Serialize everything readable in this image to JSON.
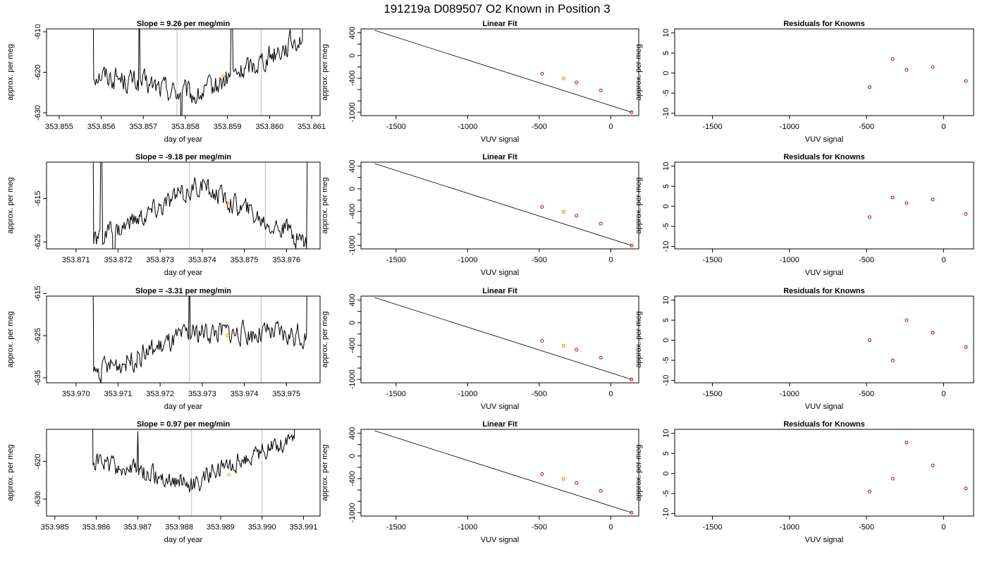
{
  "figure_title": "191219a     D089507   O2 Known in Position  3",
  "chart_data": [
    {
      "type": "line",
      "panel": "time-series",
      "title": "Slope =  9.26  per meg/min",
      "xlabel": "day of year",
      "ylabel": "approx. per meg",
      "xlim": [
        353.8547,
        353.8612
      ],
      "ylim": [
        -630.7,
        -609.3
      ],
      "xticks": [
        "353.855",
        "353.856",
        "353.857",
        "353.858",
        "353.859",
        "353.860",
        "353.861"
      ],
      "yticks": [
        -630,
        -620,
        -610
      ],
      "vlines": [
        353.8578,
        353.8598
      ],
      "highlight": {
        "x": 353.8589,
        "y": -621
      },
      "trace": {
        "x0": 353.8558,
        "x1": 353.8608,
        "level_start": -620,
        "level_mid": -626,
        "level_end": -611,
        "noise": 2.5,
        "spikes": [
          [
            353.8569,
            -600
          ],
          [
            353.8579,
            -640
          ],
          [
            353.8591,
            -602
          ]
        ]
      }
    },
    {
      "type": "line",
      "panel": "linear-fit",
      "title": "Linear Fit",
      "xlabel": "VUV signal",
      "ylabel": "approx. per meg",
      "xlim": [
        -1745,
        195
      ],
      "ylim": [
        -1060,
        470
      ],
      "xticks": [
        -1500,
        -1000,
        -500,
        0
      ],
      "yticks": [
        -1000,
        -400,
        0,
        400
      ],
      "line": {
        "x": [
          -1650,
          145
        ],
        "y": [
          445,
          -1000
        ]
      },
      "points": [
        [
          -480,
          -320
        ],
        [
          -330,
          -405
        ],
        [
          -240,
          -475
        ],
        [
          -70,
          -615
        ],
        [
          145,
          -1000
        ]
      ],
      "highlight": [
        -330,
        -405
      ]
    },
    {
      "type": "scatter",
      "panel": "residuals",
      "title": "Residuals for Knowns",
      "xlabel": "VUV signal",
      "ylabel": "approx. per meg",
      "xlim": [
        -1745,
        195
      ],
      "ylim": [
        -10.6,
        11
      ],
      "xticks": [
        -1500,
        -1000,
        -500,
        0
      ],
      "yticks": [
        -10,
        -5,
        0,
        5,
        10
      ],
      "points": [
        [
          -480,
          -3.5
        ],
        [
          -330,
          3.5
        ],
        [
          -240,
          0.8
        ],
        [
          -70,
          1.5
        ],
        [
          145,
          -2
        ]
      ]
    },
    {
      "type": "line",
      "panel": "time-series",
      "title": "Slope =  -9.18  per meg/min",
      "xlabel": "day of year",
      "ylabel": "approx. per meg",
      "xlim": [
        353.8703,
        353.8768
      ],
      "ylim": [
        -626.6,
        -606.6
      ],
      "xticks": [
        "353.871",
        "353.872",
        "353.873",
        "353.874",
        "353.875",
        "353.876"
      ],
      "yticks": [
        -625,
        -615
      ],
      "vlines": [
        353.8737,
        353.8755
      ],
      "highlight": {
        "x": 353.8746,
        "y": -616
      },
      "trace": {
        "x0": 353.8714,
        "x1": 353.8765,
        "level_start": -625,
        "level_mid": -612,
        "level_end": -625,
        "noise": 2.2,
        "spikes": [
          [
            353.8716,
            -600
          ],
          [
            353.8719,
            -640
          ],
          [
            353.8765,
            -600
          ]
        ]
      }
    },
    {
      "type": "line",
      "panel": "linear-fit",
      "title": "Linear Fit",
      "xlabel": "VUV signal",
      "ylabel": "approx. per meg",
      "xlim": [
        -1745,
        195
      ],
      "ylim": [
        -1060,
        470
      ],
      "xticks": [
        -1500,
        -1000,
        -500,
        0
      ],
      "yticks": [
        -1000,
        -400,
        0,
        400
      ],
      "line": {
        "x": [
          -1650,
          145
        ],
        "y": [
          445,
          -1000
        ]
      },
      "points": [
        [
          -480,
          -320
        ],
        [
          -330,
          -405
        ],
        [
          -240,
          -475
        ],
        [
          -70,
          -615
        ],
        [
          145,
          -1000
        ]
      ],
      "highlight": [
        -330,
        -405
      ]
    },
    {
      "type": "scatter",
      "panel": "residuals",
      "title": "Residuals for Knowns",
      "xlabel": "VUV signal",
      "ylabel": "approx. per meg",
      "xlim": [
        -1745,
        195
      ],
      "ylim": [
        -10.6,
        11
      ],
      "xticks": [
        -1500,
        -1000,
        -500,
        0
      ],
      "yticks": [
        -10,
        -5,
        0,
        5,
        10
      ],
      "points": [
        [
          -480,
          -2.7
        ],
        [
          -330,
          2.2
        ],
        [
          -240,
          0.8
        ],
        [
          -70,
          1.7
        ],
        [
          145,
          -1.9
        ]
      ]
    },
    {
      "type": "line",
      "panel": "time-series",
      "title": "Slope =  -3.31  per meg/min",
      "xlabel": "day of year",
      "ylabel": "approx. per meg",
      "xlim": [
        353.9693,
        353.9758
      ],
      "ylim": [
        -636.2,
        -615.6
      ],
      "xticks": [
        "353.970",
        "353.971",
        "353.972",
        "353.973",
        "353.974",
        "353.975"
      ],
      "yticks": [
        -635,
        -625,
        -615
      ],
      "vlines": [
        353.9727,
        353.9744
      ],
      "highlight": {
        "x": 353.9736,
        "y": -625
      },
      "trace": {
        "x0": 353.9704,
        "x1": 353.9755,
        "level_start": -634,
        "level_mid": -624,
        "level_end": -625,
        "noise": 2.4,
        "spikes": [
          [
            353.9704,
            -600
          ],
          [
            353.9727,
            -605
          ],
          [
            353.9755,
            -600
          ]
        ]
      }
    },
    {
      "type": "line",
      "panel": "linear-fit",
      "title": "Linear Fit",
      "xlabel": "VUV signal",
      "ylabel": "approx. per meg",
      "xlim": [
        -1745,
        195
      ],
      "ylim": [
        -1060,
        470
      ],
      "xticks": [
        -1500,
        -1000,
        -500,
        0
      ],
      "yticks": [
        -1000,
        -400,
        0,
        400
      ],
      "line": {
        "x": [
          -1650,
          145
        ],
        "y": [
          445,
          -1000
        ]
      },
      "points": [
        [
          -480,
          -320
        ],
        [
          -330,
          -405
        ],
        [
          -240,
          -475
        ],
        [
          -70,
          -615
        ],
        [
          145,
          -1000
        ]
      ],
      "highlight": [
        -330,
        -405
      ]
    },
    {
      "type": "scatter",
      "panel": "residuals",
      "title": "Residuals for Knowns",
      "xlabel": "VUV signal",
      "ylabel": "approx. per meg",
      "xlim": [
        -1745,
        195
      ],
      "ylim": [
        -10.6,
        11
      ],
      "xticks": [
        -1500,
        -1000,
        -500,
        0
      ],
      "yticks": [
        -10,
        -5,
        0,
        5,
        10
      ],
      "points": [
        [
          -480,
          0
        ],
        [
          -330,
          -5
        ],
        [
          -240,
          5
        ],
        [
          -70,
          1.9
        ],
        [
          145,
          -1.7
        ]
      ]
    },
    {
      "type": "line",
      "panel": "time-series",
      "title": "Slope =  0.97  per meg/min",
      "xlabel": "day of year",
      "ylabel": "approx. per meg",
      "xlim": [
        353.9848,
        353.9914
      ],
      "ylim": [
        -634.5,
        -611.5
      ],
      "xticks": [
        "353.985",
        "353.986",
        "353.987",
        "353.988",
        "353.989",
        "353.990",
        "353.991"
      ],
      "yticks": [
        -630,
        -620
      ],
      "vlines": [
        353.9883,
        353.99
      ],
      "highlight": {
        "x": 353.9892,
        "y": -623.5
      },
      "trace": {
        "x0": 353.9859,
        "x1": 353.9908,
        "level_start": -620,
        "level_mid": -626,
        "level_end": -613,
        "noise": 2.3,
        "spikes": [
          [
            353.987,
            -612
          ]
        ]
      }
    },
    {
      "type": "line",
      "panel": "linear-fit",
      "title": "Linear Fit",
      "xlabel": "VUV signal",
      "ylabel": "approx. per meg",
      "xlim": [
        -1745,
        195
      ],
      "ylim": [
        -1060,
        470
      ],
      "xticks": [
        -1500,
        -1000,
        -500,
        0
      ],
      "yticks": [
        -1000,
        -400,
        0,
        400
      ],
      "line": {
        "x": [
          -1650,
          145
        ],
        "y": [
          445,
          -1000
        ]
      },
      "points": [
        [
          -480,
          -320
        ],
        [
          -330,
          -405
        ],
        [
          -240,
          -475
        ],
        [
          -70,
          -615
        ],
        [
          145,
          -1000
        ]
      ],
      "highlight": [
        -330,
        -405
      ]
    },
    {
      "type": "scatter",
      "panel": "residuals",
      "title": "Residuals for Knowns",
      "xlabel": "VUV signal",
      "ylabel": "approx. per meg",
      "xlim": [
        -1745,
        195
      ],
      "ylim": [
        -10.6,
        11
      ],
      "xticks": [
        -1500,
        -1000,
        -500,
        0
      ],
      "yticks": [
        -10,
        -5,
        0,
        5,
        10
      ],
      "points": [
        [
          -480,
          -4.5
        ],
        [
          -330,
          -1.3
        ],
        [
          -240,
          7.7
        ],
        [
          -70,
          2
        ],
        [
          145,
          -3.7
        ]
      ]
    }
  ],
  "colors": {
    "trace": "#000000",
    "point": "#cc0000",
    "highlight": "#ff9900",
    "vline": "#bbbbbb"
  }
}
